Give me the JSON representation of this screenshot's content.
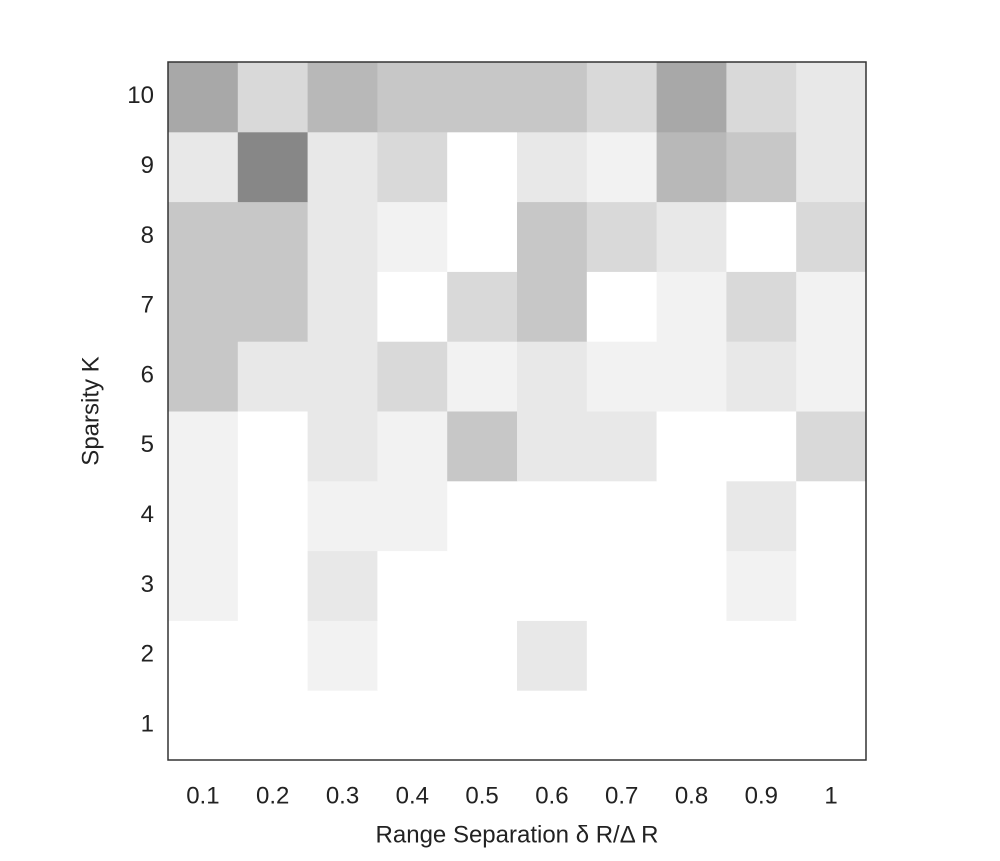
{
  "chart_data": {
    "type": "heatmap",
    "xlabel": "Range Separation  δ R/Δ R",
    "ylabel": "Sparsity  K",
    "x": [
      0.1,
      0.2,
      0.3,
      0.4,
      0.5,
      0.6,
      0.7,
      0.8,
      0.9,
      1
    ],
    "y": [
      1,
      2,
      3,
      4,
      5,
      6,
      7,
      8,
      9,
      10
    ],
    "z": [
      [
        0,
        0,
        0,
        0,
        0,
        0,
        0,
        0,
        0,
        0
      ],
      [
        0,
        0,
        0.05,
        0,
        0,
        0.09,
        0,
        0,
        0,
        0
      ],
      [
        0.05,
        0,
        0.09,
        0,
        0,
        0,
        0,
        0,
        0.05,
        0
      ],
      [
        0.05,
        0,
        0.05,
        0.05,
        0,
        0,
        0,
        0,
        0.09,
        0
      ],
      [
        0.05,
        0,
        0.09,
        0.05,
        0.22,
        0.09,
        0.09,
        0,
        0,
        0.15
      ],
      [
        0.22,
        0.09,
        0.09,
        0.15,
        0.05,
        0.09,
        0.05,
        0.05,
        0.09,
        0.05
      ],
      [
        0.22,
        0.22,
        0.09,
        0,
        0.15,
        0.22,
        0,
        0.05,
        0.15,
        0.05
      ],
      [
        0.22,
        0.22,
        0.09,
        0.05,
        0,
        0.22,
        0.15,
        0.09,
        0,
        0.15
      ],
      [
        0.09,
        0.47,
        0.09,
        0.15,
        0,
        0.09,
        0.05,
        0.28,
        0.22,
        0.09
      ],
      [
        0.34,
        0.15,
        0.28,
        0.22,
        0.22,
        0.22,
        0.15,
        0.34,
        0.15,
        0.09
      ]
    ],
    "zlim": [
      0,
      1
    ],
    "colorscale": [
      "#ffffff",
      "#000000"
    ]
  }
}
